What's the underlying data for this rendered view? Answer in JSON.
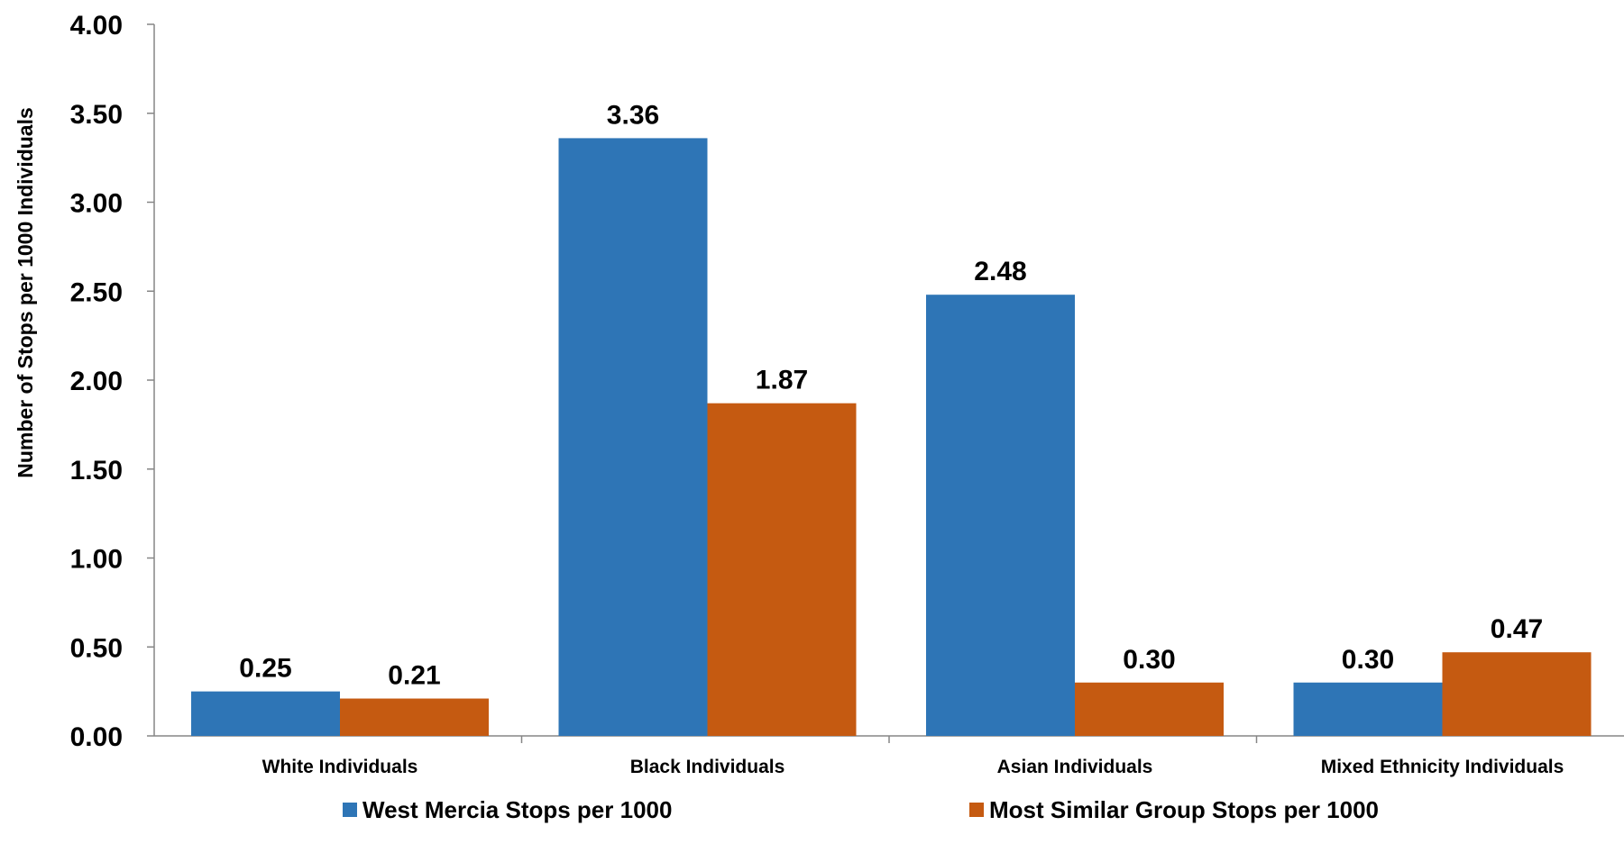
{
  "chart_data": {
    "type": "bar",
    "title": "",
    "xlabel": "",
    "ylabel": "Number of Stops per 1000 Individuals",
    "ylim": [
      0,
      4
    ],
    "yticks": [
      "0.00",
      "0.50",
      "1.00",
      "1.50",
      "2.00",
      "2.50",
      "3.00",
      "3.50",
      "4.00"
    ],
    "categories": [
      "White Individuals",
      "Black Individuals",
      "Asian Individuals",
      "Mixed Ethnicity Individuals"
    ],
    "series": [
      {
        "name": "West Mercia Stops per 1000",
        "color": "#2e75b6",
        "values": [
          0.25,
          3.36,
          2.48,
          0.3
        ],
        "labels": [
          "0.25",
          "3.36",
          "2.48",
          "0.30"
        ]
      },
      {
        "name": "Most Similar Group Stops per 1000",
        "color": "#c55a11",
        "values": [
          0.21,
          1.87,
          0.3,
          0.47
        ],
        "labels": [
          "0.21",
          "1.87",
          "0.30",
          "0.47"
        ]
      }
    ],
    "grid": false,
    "legend_position": "bottom"
  }
}
